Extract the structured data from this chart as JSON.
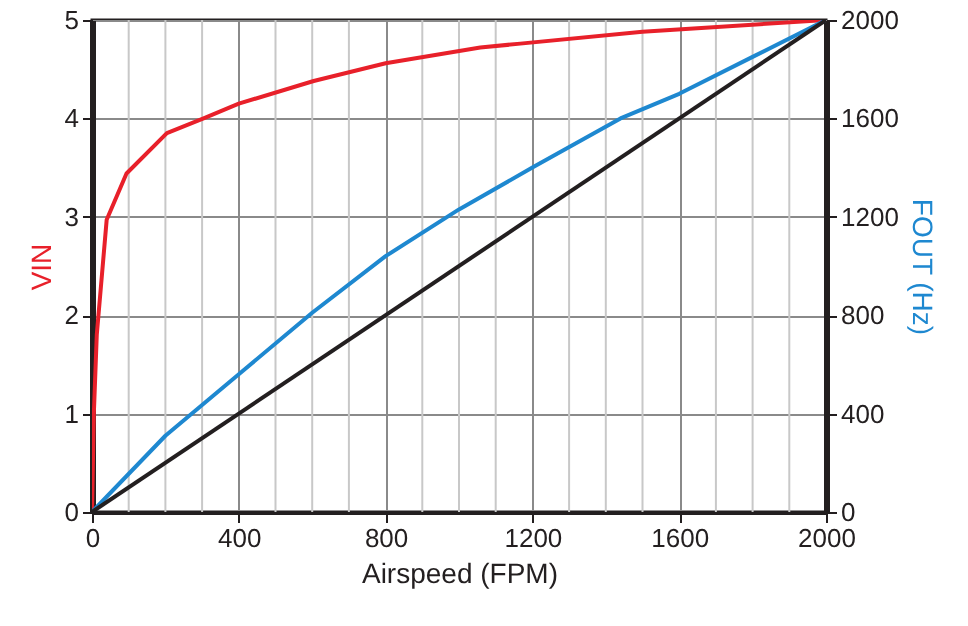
{
  "chart_data": {
    "type": "line",
    "xlabel": "Airspeed (FPM)",
    "ylabel": "VIN",
    "y2label": "FOUT (Hz)",
    "xlim": [
      0,
      2000
    ],
    "xticks": [
      0,
      {
        "value": 100,
        "label": null
      },
      {
        "value": 200,
        "label": null
      },
      {
        "value": 300,
        "label": null
      },
      400,
      {
        "value": 500,
        "label": null
      },
      {
        "value": 600,
        "label": null
      },
      {
        "value": 700,
        "label": null
      },
      800,
      {
        "value": 900,
        "label": null
      },
      {
        "value": 1000,
        "label": null
      },
      {
        "value": 1100,
        "label": null
      },
      1200,
      {
        "value": 1300,
        "label": null
      },
      {
        "value": 1400,
        "label": null
      },
      {
        "value": 1500,
        "label": null
      },
      1600,
      {
        "value": 1700,
        "label": null
      },
      {
        "value": 1800,
        "label": null
      },
      {
        "value": 1900,
        "label": null
      },
      2000
    ],
    "ylim": [
      0,
      5
    ],
    "yticks": [
      0,
      1,
      2,
      3,
      4,
      5
    ],
    "y2lim": [
      0,
      2000
    ],
    "y2ticks": [
      0,
      400,
      800,
      1200,
      1600,
      2000
    ],
    "grid": true,
    "marker": "none",
    "line_style": "solid",
    "series": [
      {
        "color": "#e8202a",
        "x": [
          0,
          5,
          13,
          40,
          94,
          204,
          304,
          400,
          604,
          800,
          1058,
          1167,
          1500,
          2000
        ],
        "values": [
          0,
          1.0,
          1.8,
          2.97,
          3.44,
          3.85,
          4.0,
          4.15,
          4.38,
          4.56,
          4.72,
          4.76,
          4.88,
          5
        ]
      },
      {
        "color": "#1e88d0",
        "axis": "y2",
        "x": [
          0,
          200,
          400,
          600,
          800,
          1000,
          1200,
          1440,
          1600,
          1800,
          2000
        ],
        "values": [
          0,
          310,
          560,
          810,
          1040,
          1230,
          1400,
          1600,
          1700,
          1850,
          2000
        ]
      },
      {
        "color": "#231f20",
        "axis": "y2",
        "x": [
          0,
          2000
        ],
        "values": [
          0,
          2000
        ]
      }
    ]
  }
}
